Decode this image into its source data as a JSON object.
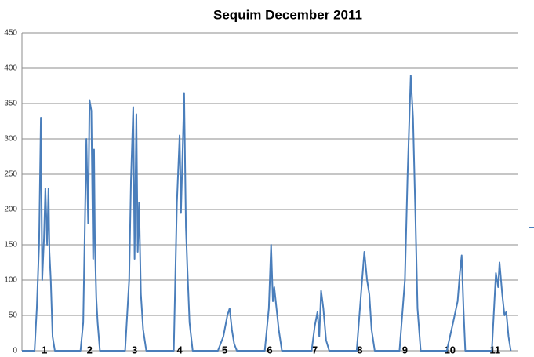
{
  "chart_data": {
    "type": "line",
    "title": "Sequim December 2011",
    "x": [
      0,
      0.28,
      0.33,
      0.38,
      0.42,
      0.45,
      0.49,
      0.52,
      0.56,
      0.59,
      0.61,
      0.64,
      0.68,
      0.73,
      1.3,
      1.36,
      1.43,
      1.47,
      1.5,
      1.54,
      1.58,
      1.6,
      1.62,
      1.65,
      1.68,
      1.73,
      2.29,
      2.38,
      2.42,
      2.47,
      2.5,
      2.54,
      2.57,
      2.6,
      2.64,
      2.69,
      2.76,
      3.37,
      3.44,
      3.5,
      3.53,
      3.57,
      3.6,
      3.64,
      3.67,
      3.72,
      3.79,
      4.35,
      4.47,
      4.56,
      4.61,
      4.66,
      4.71,
      4.77,
      5.39,
      5.48,
      5.53,
      5.57,
      5.6,
      5.65,
      5.7,
      5.77,
      6.43,
      6.5,
      6.56,
      6.6,
      6.64,
      6.69,
      6.75,
      6.82,
      7.43,
      7.55,
      7.6,
      7.66,
      7.71,
      7.76,
      7.83,
      8.38,
      8.5,
      8.56,
      8.63,
      8.68,
      8.73,
      8.78,
      8.85,
      9.43,
      9.57,
      9.67,
      9.72,
      9.76,
      9.8,
      9.84,
      10.43,
      10.52,
      10.57,
      10.6,
      10.66,
      10.71,
      10.75,
      10.8,
      10.85
    ],
    "series": [
      {
        "color": "#4a7ebb",
        "values": [
          0,
          0,
          60,
          150,
          330,
          100,
          160,
          230,
          150,
          230,
          140,
          100,
          20,
          0,
          0,
          40,
          300,
          180,
          355,
          340,
          130,
          285,
          150,
          75,
          40,
          0,
          0,
          100,
          240,
          345,
          130,
          335,
          140,
          210,
          80,
          30,
          0,
          0,
          210,
          305,
          195,
          290,
          365,
          175,
          120,
          40,
          0,
          0,
          20,
          50,
          60,
          30,
          10,
          0,
          0,
          60,
          150,
          70,
          90,
          60,
          30,
          0,
          0,
          35,
          55,
          20,
          85,
          60,
          15,
          0,
          0,
          100,
          140,
          100,
          80,
          30,
          0,
          0,
          100,
          250,
          390,
          330,
          200,
          60,
          0,
          0,
          40,
          70,
          110,
          135,
          60,
          0,
          0,
          110,
          90,
          125,
          80,
          50,
          55,
          20,
          0
        ]
      }
    ],
    "xlim": [
      0,
      11
    ],
    "xticks": [
      {
        "value": 0.5,
        "label": "1"
      },
      {
        "value": 1.5,
        "label": "2"
      },
      {
        "value": 2.5,
        "label": "3"
      },
      {
        "value": 3.5,
        "label": "4"
      },
      {
        "value": 4.5,
        "label": "5"
      },
      {
        "value": 5.5,
        "label": "6"
      },
      {
        "value": 6.5,
        "label": "7"
      },
      {
        "value": 7.5,
        "label": "8"
      },
      {
        "value": 8.5,
        "label": "9"
      },
      {
        "value": 9.5,
        "label": "10"
      },
      {
        "value": 10.5,
        "label": "11"
      }
    ],
    "ylim": [
      0,
      450
    ],
    "yticks": [
      0,
      50,
      100,
      150,
      200,
      250,
      300,
      350,
      400,
      450
    ],
    "grid": true
  }
}
